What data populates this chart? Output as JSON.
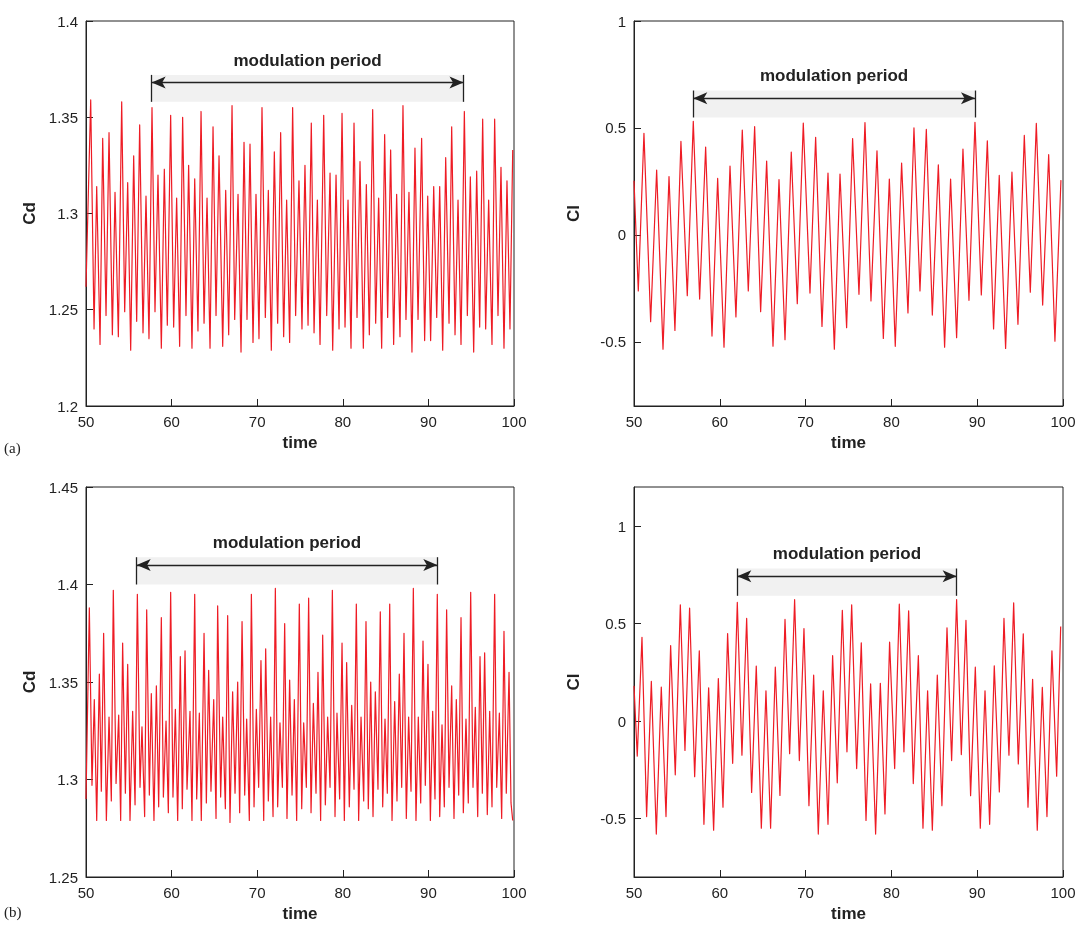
{
  "chart_data": [
    {
      "type": "line",
      "xlabel": "time",
      "ylabel": "Cd",
      "annotations": [
        "(a)"
      ],
      "xlim": [
        50,
        100
      ],
      "xticks": [
        50,
        60,
        70,
        80,
        90,
        100
      ],
      "ylim": [
        1.2,
        1.4
      ],
      "yticks": [
        1.2,
        1.25,
        1.3,
        1.35,
        1.4
      ],
      "grid": false,
      "bands": [
        {
          "axis": "x",
          "from": 57.67,
          "to": 94.1,
          "label": "modulation period"
        }
      ],
      "series": [
        {
          "color": "#ee1c25",
          "x": [
            50,
            50.55,
            50.94,
            51.25,
            51.64,
            51.95,
            52.34,
            52.69,
            53.08,
            53.39,
            53.78,
            54.17,
            54.52,
            54.87,
            55.22,
            55.57,
            55.92,
            56.27,
            56.66,
            57.01,
            57.36,
            57.71,
            58.06,
            58.41,
            58.8,
            59.15,
            59.5,
            59.89,
            60.24,
            60.59,
            60.94,
            61.29,
            61.68,
            61.99,
            62.38,
            62.7,
            63.08,
            63.44,
            63.79,
            64.14,
            64.49,
            64.84,
            65.19,
            65.54,
            65.97,
            66.32,
            66.67,
            67.06,
            67.37,
            67.76,
            68.11,
            68.46,
            68.81,
            69.16,
            69.51,
            69.86,
            70.21,
            70.56,
            70.95,
            71.3,
            71.65,
            72,
            72.39,
            72.74,
            73.09,
            73.44,
            73.79,
            74.14,
            74.49,
            74.88,
            75.23,
            75.58,
            75.94,
            76.32,
            76.64,
            77.03,
            77.34,
            77.77,
            78.12,
            78.51,
            78.82,
            79.21,
            79.56,
            79.91,
            80.26,
            80.61,
            80.96,
            81.31,
            81.66,
            82.01,
            82.4,
            82.75,
            83.1,
            83.49,
            83.84,
            84.19,
            84.54,
            84.89,
            85.24,
            85.59,
            85.94,
            86.29,
            86.68,
            87.03,
            87.38,
            87.73,
            88.08,
            88.43,
            88.79,
            89.21,
            89.56,
            89.92,
            90.26,
            90.62,
            90.97,
            91.32,
            91.67,
            92.02,
            92.41,
            92.72,
            93.11,
            93.46,
            93.81,
            94.2,
            94.55,
            94.9,
            95.29,
            95.64,
            95.99,
            96.34,
            96.69,
            97.04,
            97.43,
            97.74,
            98.13,
            98.48,
            98.83,
            99.18,
            99.53,
            99.85
          ],
          "values": [
            1.262,
            1.359,
            1.24,
            1.314,
            1.232,
            1.339,
            1.247,
            1.342,
            1.237,
            1.311,
            1.236,
            1.358,
            1.249,
            1.316,
            1.229,
            1.33,
            1.244,
            1.346,
            1.238,
            1.309,
            1.235,
            1.355,
            1.249,
            1.32,
            1.23,
            1.323,
            1.242,
            1.351,
            1.241,
            1.308,
            1.231,
            1.35,
            1.247,
            1.325,
            1.23,
            1.318,
            1.239,
            1.353,
            1.243,
            1.308,
            1.23,
            1.345,
            1.247,
            1.33,
            1.231,
            1.312,
            1.237,
            1.356,
            1.245,
            1.31,
            1.228,
            1.337,
            1.245,
            1.336,
            1.233,
            1.31,
            1.235,
            1.355,
            1.246,
            1.312,
            1.229,
            1.332,
            1.243,
            1.342,
            1.236,
            1.307,
            1.233,
            1.355,
            1.247,
            1.317,
            1.24,
            1.325,
            1.242,
            1.347,
            1.238,
            1.307,
            1.232,
            1.351,
            1.247,
            1.321,
            1.229,
            1.32,
            1.24,
            1.352,
            1.241,
            1.307,
            1.23,
            1.347,
            1.246,
            1.327,
            1.23,
            1.315,
            1.237,
            1.354,
            1.243,
            1.308,
            1.23,
            1.341,
            1.246,
            1.333,
            1.232,
            1.31,
            1.236,
            1.356,
            1.245,
            1.311,
            1.228,
            1.334,
            1.245,
            1.339,
            1.234,
            1.309,
            1.234,
            1.314,
            1.246,
            1.314,
            1.229,
            1.329,
            1.243,
            1.345,
            1.237,
            1.307,
            1.232,
            1.353,
            1.247,
            1.319,
            1.228,
            1.322,
            1.241,
            1.349,
            1.24,
            1.307,
            1.232,
            1.349,
            1.247,
            1.324,
            1.23,
            1.317,
            1.24,
            1.333
          ]
        }
      ]
    },
    {
      "type": "line",
      "xlabel": "time",
      "ylabel": "Cl",
      "xlim": [
        50,
        100
      ],
      "xticks": [
        50,
        60,
        70,
        80,
        90,
        100
      ],
      "ylim": [
        -0.8,
        1
      ],
      "yticks": [
        -0.5,
        0,
        0.5,
        1
      ],
      "grid": false,
      "bands": [
        {
          "axis": "x",
          "from": 56.91,
          "to": 89.74,
          "label": "modulation period"
        }
      ],
      "series": [
        {
          "color": "#ee1c25",
          "x": [
            50,
            50.5,
            51.16,
            51.94,
            52.64,
            53.38,
            54.08,
            54.77,
            55.47,
            56.21,
            56.91,
            57.65,
            58.35,
            59.09,
            59.75,
            60.49,
            61.19,
            61.88,
            62.62,
            63.32,
            64.06,
            64.76,
            65.46,
            66.2,
            66.9,
            67.6,
            68.33,
            69.03,
            69.73,
            70.51,
            71.17,
            71.91,
            72.61,
            73.35,
            74.01,
            74.78,
            75.48,
            76.22,
            76.92,
            77.62,
            78.32,
            79.06,
            79.76,
            80.45,
            81.19,
            81.93,
            82.63,
            83.33,
            84.07,
            84.77,
            85.47,
            86.2,
            86.9,
            87.6,
            88.34,
            89.04,
            89.74,
            90.48,
            91.18,
            91.91,
            92.57,
            93.31,
            94.05,
            94.75,
            95.49,
            96.19,
            96.89,
            97.63,
            98.33,
            99.06,
            99.76
          ],
          "values": [
            0.253,
            -0.262,
            0.475,
            -0.406,
            0.303,
            -0.534,
            0.273,
            -0.447,
            0.437,
            -0.284,
            0.531,
            -0.3,
            0.411,
            -0.473,
            0.264,
            -0.525,
            0.322,
            -0.384,
            0.49,
            -0.262,
            0.506,
            -0.359,
            0.345,
            -0.52,
            0.259,
            -0.49,
            0.387,
            -0.322,
            0.523,
            -0.272,
            0.456,
            -0.428,
            0.289,
            -0.534,
            0.284,
            -0.434,
            0.45,
            -0.278,
            0.525,
            -0.309,
            0.393,
            -0.484,
            0.261,
            -0.521,
            0.336,
            -0.365,
            0.5,
            -0.262,
            0.493,
            -0.375,
            0.328,
            -0.525,
            0.261,
            -0.481,
            0.401,
            -0.306,
            0.526,
            -0.281,
            0.44,
            -0.44,
            0.278,
            -0.531,
            0.293,
            -0.418,
            0.465,
            -0.268,
            0.521,
            -0.328,
            0.375,
            -0.497,
            0.256
          ]
        }
      ]
    },
    {
      "type": "line",
      "xlabel": "time",
      "ylabel": "Cd",
      "annotations": [
        "(b)"
      ],
      "xlim": [
        50,
        100
      ],
      "xticks": [
        50,
        60,
        70,
        80,
        90,
        100
      ],
      "ylim": [
        1.25,
        1.45
      ],
      "yticks": [
        1.25,
        1.3,
        1.35,
        1.4,
        1.45
      ],
      "grid": false,
      "bands": [
        {
          "axis": "x",
          "from": 55.92,
          "to": 91.04,
          "label": "modulation period"
        }
      ],
      "series": [
        {
          "color": "#ee1c25",
          "x": [
            50,
            50.39,
            50.7,
            50.97,
            51.25,
            51.56,
            51.79,
            52.06,
            52.38,
            52.69,
            52.96,
            53.19,
            53.51,
            53.82,
            54.05,
            54.28,
            54.6,
            54.87,
            55.14,
            55.45,
            55.73,
            56,
            56.31,
            56.54,
            56.85,
            57.09,
            57.4,
            57.63,
            57.94,
            58.22,
            58.49,
            58.8,
            59.04,
            59.35,
            59.62,
            59.89,
            60.16,
            60.44,
            60.71,
            61.02,
            61.25,
            61.57,
            61.8,
            62.15,
            62.38,
            62.7,
            62.93,
            63.24,
            63.47,
            63.79,
            64.06,
            64.33,
            64.6,
            64.92,
            65.19,
            65.38,
            65.73,
            65.97,
            66.28,
            66.55,
            66.82,
            67.13,
            67.41,
            67.72,
            67.95,
            68.23,
            68.54,
            68.77,
            69.08,
            69.32,
            69.63,
            69.9,
            70.17,
            70.44,
            70.76,
            70.99,
            71.3,
            71.57,
            71.85,
            72.12,
            72.39,
            72.66,
            72.94,
            73.21,
            73.48,
            73.79,
            74.07,
            74.34,
            74.61,
            74.92,
            75.2,
            75.43,
            75.74,
            76.01,
            76.29,
            76.56,
            76.87,
            77.1,
            77.41,
            77.65,
            77.96,
            78.23,
            78.51,
            78.78,
            79.09,
            79.32,
            79.63,
            79.91,
            80.18,
            80.45,
            80.76,
            81.04,
            81.31,
            81.58,
            81.85,
            82.13,
            82.44,
            82.71,
            82.98,
            83.26,
            83.53,
            83.8,
            84.11,
            84.38,
            84.66,
            84.93,
            85.2,
            85.48,
            85.75,
            86.06,
            86.33,
            86.6,
            86.88,
            87.15,
            87.42,
            87.69,
            87.97,
            88.24,
            88.55,
            88.82,
            89.1,
            89.37,
            89.64,
            89.95,
            90.23,
            90.5,
            90.77,
            91.04,
            91.32,
            91.59,
            91.86,
            92.13,
            92.41,
            92.72,
            92.99,
            93.26,
            93.54,
            93.81,
            94.08,
            94.39,
            94.66,
            94.94,
            95.21,
            95.48,
            95.76,
            96.03,
            96.3,
            96.57,
            96.88,
            97.16,
            97.43,
            97.74,
            97.98,
            98.29,
            98.56,
            98.83,
            99.1,
            99.42,
            99.65,
            99.85
          ],
          "values": [
            1.29,
            1.388,
            1.297,
            1.341,
            1.279,
            1.354,
            1.294,
            1.375,
            1.279,
            1.332,
            1.289,
            1.397,
            1.298,
            1.333,
            1.279,
            1.37,
            1.293,
            1.359,
            1.279,
            1.335,
            1.287,
            1.395,
            1.296,
            1.327,
            1.281,
            1.387,
            1.292,
            1.344,
            1.279,
            1.348,
            1.286,
            1.383,
            1.291,
            1.33,
            1.283,
            1.396,
            1.291,
            1.336,
            1.279,
            1.363,
            1.285,
            1.366,
            1.295,
            1.335,
            1.279,
            1.395,
            1.29,
            1.334,
            1.279,
            1.375,
            1.288,
            1.356,
            1.294,
            1.341,
            1.28,
            1.389,
            1.291,
            1.332,
            1.285,
            1.384,
            1.278,
            1.345,
            1.293,
            1.35,
            1.283,
            1.381,
            1.292,
            1.331,
            1.279,
            1.395,
            1.286,
            1.336,
            1.296,
            1.361,
            1.279,
            1.367,
            1.289,
            1.332,
            1.281,
            1.398,
            1.286,
            1.329,
            1.296,
            1.38,
            1.28,
            1.351,
            1.292,
            1.341,
            1.279,
            1.39,
            1.285,
            1.329,
            1.296,
            1.393,
            1.283,
            1.339,
            1.293,
            1.355,
            1.279,
            1.374,
            1.287,
            1.332,
            1.296,
            1.397,
            1.281,
            1.334,
            1.29,
            1.37,
            1.279,
            1.36,
            1.286,
            1.338,
            1.295,
            1.39,
            1.279,
            1.332,
            1.289,
            1.381,
            1.285,
            1.35,
            1.281,
            1.345,
            1.295,
            1.386,
            1.286,
            1.331,
            1.293,
            1.39,
            1.279,
            1.34,
            1.289,
            1.354,
            1.296,
            1.375,
            1.28,
            1.332,
            1.294,
            1.398,
            1.279,
            1.332,
            1.288,
            1.371,
            1.297,
            1.359,
            1.279,
            1.335,
            1.29,
            1.395,
            1.281,
            1.328,
            1.286,
            1.387,
            1.296,
            1.348,
            1.28,
            1.341,
            1.292,
            1.383,
            1.283,
            1.331,
            1.288,
            1.396,
            1.296,
            1.337,
            1.281,
            1.363,
            1.293,
            1.365,
            1.282,
            1.335,
            1.286,
            1.395,
            1.296,
            1.334,
            1.28,
            1.376,
            1.293,
            1.355,
            1.288,
            1.279
          ]
        }
      ]
    },
    {
      "type": "line",
      "xlabel": "time",
      "ylabel": "Cl",
      "xlim": [
        50,
        100
      ],
      "xticks": [
        50,
        60,
        70,
        80,
        90,
        100
      ],
      "ylim": [
        -0.8,
        1.2
      ],
      "yticks": [
        -0.5,
        0,
        0.5,
        1
      ],
      "grid": false,
      "bands": [
        {
          "axis": "x",
          "from": 62.04,
          "to": 87.6,
          "label": "modulation period"
        }
      ],
      "series": [
        {
          "color": "#ee1c25",
          "x": [
            50,
            50.38,
            50.93,
            51.47,
            52.02,
            52.6,
            53.18,
            53.73,
            54.27,
            54.81,
            55.4,
            55.94,
            56.48,
            57.07,
            57.61,
            58.15,
            58.7,
            59.28,
            59.83,
            60.37,
            60.91,
            61.5,
            62.04,
            62.58,
            63.13,
            63.71,
            64.25,
            64.84,
            65.38,
            65.92,
            66.47,
            67.01,
            67.6,
            68.14,
            68.72,
            69.27,
            69.81,
            70.39,
            70.94,
            71.48,
            72.06,
            72.61,
            73.15,
            73.69,
            74.28,
            74.82,
            75.37,
            75.95,
            76.49,
            77.04,
            77.58,
            78.16,
            78.71,
            79.25,
            79.79,
            80.38,
            80.92,
            81.46,
            82.01,
            82.55,
            83.14,
            83.68,
            84.22,
            84.77,
            85.35,
            85.89,
            86.48,
            87.02,
            87.6,
            88.15,
            88.69,
            89.23,
            89.78,
            90.36,
            90.91,
            91.45,
            91.99,
            92.58,
            93.12,
            93.7,
            94.25,
            94.79,
            95.37,
            95.92,
            96.46,
            97,
            97.59,
            98.13,
            98.71,
            99.26,
            99.73
          ],
          "values": [
            0.18,
            -0.18,
            0.429,
            -0.49,
            0.203,
            -0.58,
            0.174,
            -0.49,
            0.387,
            -0.276,
            0.596,
            -0.151,
            0.579,
            -0.286,
            0.36,
            -0.53,
            0.17,
            -0.56,
            0.218,
            -0.442,
            0.448,
            -0.217,
            0.608,
            -0.175,
            0.526,
            -0.366,
            0.282,
            -0.55,
            0.155,
            -0.55,
            0.276,
            -0.382,
            0.521,
            -0.168,
            0.622,
            -0.203,
            0.474,
            -0.434,
            0.235,
            -0.58,
            0.155,
            -0.53,
            0.335,
            -0.317,
            0.568,
            -0.158,
            0.596,
            -0.244,
            0.401,
            -0.51,
            0.19,
            -0.58,
            0.193,
            -0.477,
            0.405,
            -0.244,
            0.599,
            -0.158,
            0.565,
            -0.321,
            0.335,
            -0.55,
            0.155,
            -0.56,
            0.235,
            -0.434,
            0.478,
            -0.203,
            0.622,
            -0.172,
            0.516,
            -0.383,
            0.276,
            -0.55,
            0.155,
            -0.53,
            0.283,
            -0.364,
            0.526,
            -0.175,
            0.606,
            -0.22,
            0.447,
            -0.442,
            0.214,
            -0.56,
            0.172,
            -0.49,
            0.36,
            -0.283,
            0.485
          ]
        }
      ]
    }
  ]
}
